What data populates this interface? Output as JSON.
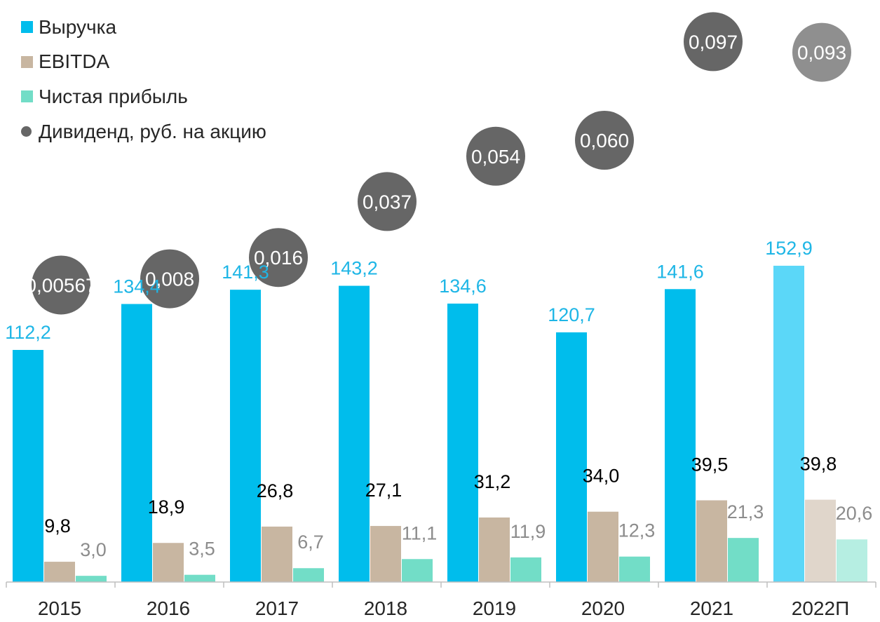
{
  "chart_data": {
    "type": "bar",
    "categories": [
      "2015",
      "2016",
      "2017",
      "2018",
      "2019",
      "2020",
      "2021",
      "2022П"
    ],
    "series": [
      {
        "name": "Выручка",
        "kind": "bar",
        "color": "#00BDEC",
        "values": [
          112.2,
          134.4,
          141.3,
          143.2,
          134.6,
          120.7,
          141.6,
          152.9
        ],
        "labels": [
          "112,2",
          "134,4",
          "141,3",
          "143,2",
          "134,6",
          "120,7",
          "141,6",
          "152,9"
        ],
        "label_color": "#1EB6E6"
      },
      {
        "name": "EBITDA",
        "kind": "bar",
        "color": "#C8B6A1",
        "values": [
          9.8,
          18.9,
          26.8,
          27.1,
          31.2,
          34.0,
          39.5,
          39.8
        ],
        "labels": [
          "9,8",
          "18,9",
          "26,8",
          "27,1",
          "31,2",
          "34,0",
          "39,5",
          "39,8"
        ],
        "label_color": "#000000"
      },
      {
        "name": "Чистая прибыль",
        "kind": "bar",
        "color": "#72DDC7",
        "values": [
          3.0,
          3.5,
          6.7,
          11.1,
          11.9,
          12.3,
          21.3,
          20.6
        ],
        "labels": [
          "3,0",
          "3,5",
          "6,7",
          "11,1",
          "11,9",
          "12,3",
          "21,3",
          "20,6"
        ],
        "label_color": "#8C8C8C"
      },
      {
        "name": "Дивиденд, руб. на акцию",
        "kind": "bubble",
        "color": "#666666",
        "values": [
          0.00567,
          0.008,
          0.016,
          0.037,
          0.054,
          0.06,
          0.097,
          0.093
        ],
        "labels": [
          "0,00567",
          "0,008",
          "0,016",
          "0,037",
          "0,054",
          "0,060",
          "0,097",
          "0,093"
        ],
        "label_color": "#FFFFFF"
      }
    ],
    "forecast_category": "2022П",
    "forecast_colors": {
      "Выручка": "#5BD7F8",
      "EBITDA": "#E0D6CB",
      "Чистая прибыль": "#B6EEE2",
      "Дивиденд, руб. на акцию": "#8F8F8F"
    },
    "ylim_bars": [
      0,
      215
    ],
    "ylim_dividend": [
      0,
      0.1
    ],
    "legend_position": "top-left",
    "grid": false
  }
}
